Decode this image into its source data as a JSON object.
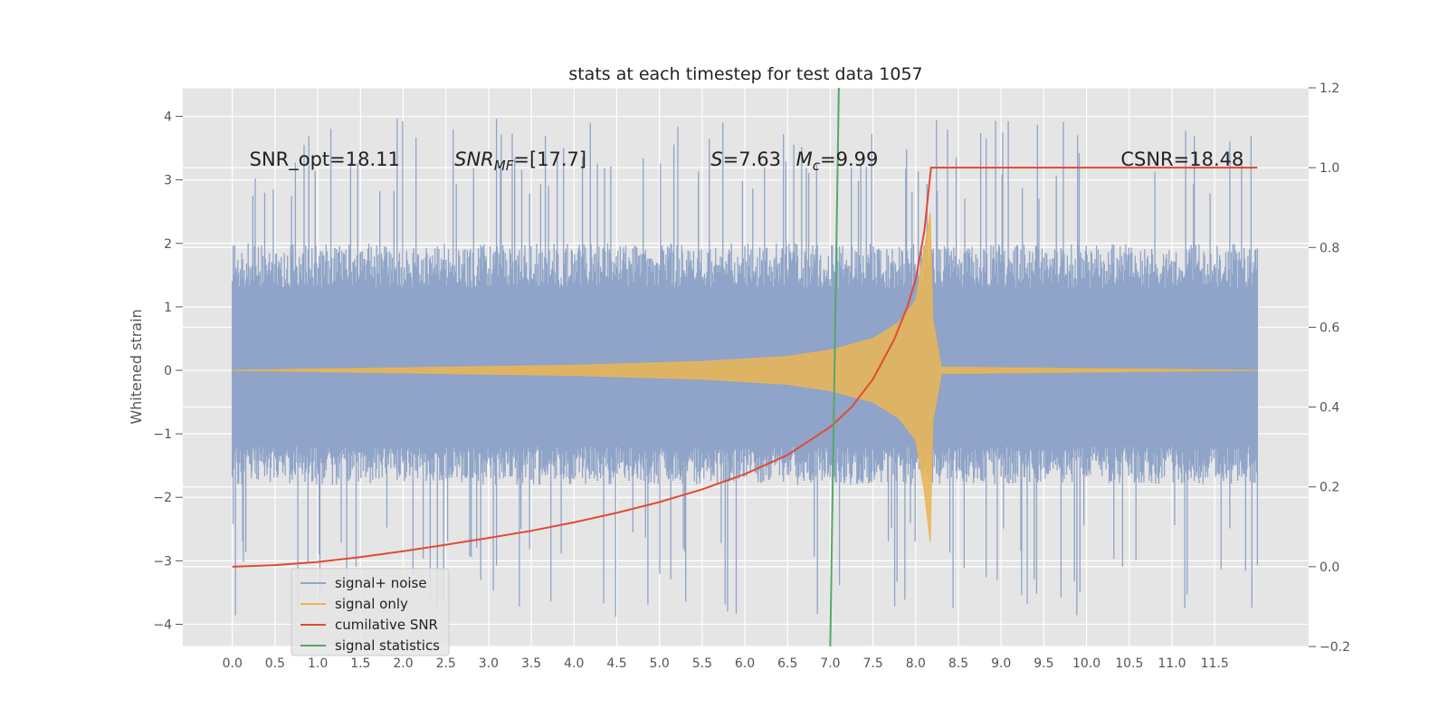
{
  "chart_data": {
    "type": "line",
    "title": "stats at each timestep for test data 1057",
    "xlabel": "",
    "ylabel": "Whitened strain",
    "y2label": "",
    "xlim": [
      -0.58,
      12.6
    ],
    "ylim": [
      -4.35,
      4.45
    ],
    "y2lim": [
      -0.2,
      1.2
    ],
    "grid": true,
    "xticks": [
      0.0,
      0.5,
      1.0,
      1.5,
      2.0,
      2.5,
      3.0,
      3.5,
      4.0,
      4.5,
      5.0,
      5.5,
      6.0,
      6.5,
      7.0,
      7.5,
      8.0,
      8.5,
      9.0,
      9.5,
      10.0,
      10.5,
      11.0,
      11.5
    ],
    "xtick_labels": [
      "0.0",
      "0.5",
      "1.0",
      "1.5",
      "2.0",
      "2.5",
      "3.0",
      "3.5",
      "4.0",
      "4.5",
      "5.0",
      "5.5",
      "6.0",
      "6.5",
      "7.0",
      "7.5",
      "8.0",
      "8.5",
      "9.0",
      "9.5",
      "10.0",
      "10.5",
      "11.0",
      "11.5"
    ],
    "yticks": [
      -4,
      -3,
      -2,
      -1,
      0,
      1,
      2,
      3,
      4
    ],
    "ytick_labels": [
      "−4",
      "−3",
      "−2",
      "−1",
      "0",
      "1",
      "2",
      "3",
      "4"
    ],
    "y2ticks": [
      -0.2,
      0.0,
      0.2,
      0.4,
      0.6,
      0.8,
      1.0,
      1.2
    ],
    "y2tick_labels": [
      "−0.2",
      "0.0",
      "0.2",
      "0.4",
      "0.6",
      "0.8",
      "1.0",
      "1.2"
    ],
    "annotations": [
      {
        "name": "snr-opt",
        "text": "SNR_opt=18.11",
        "x": 0.2,
        "y": 3.22
      },
      {
        "name": "snr-mf",
        "text": "SNR",
        "sub": "MF",
        "suffix": "=[17.7]",
        "x": 2.6,
        "y": 3.22
      },
      {
        "name": "s-value",
        "text": "S",
        "suffix": "=7.63",
        "x": 5.6,
        "y": 3.22
      },
      {
        "name": "mc-value",
        "text": "M",
        "sub": "c",
        "suffix": "=9.99",
        "x": 6.6,
        "y": 3.22
      },
      {
        "name": "csnr",
        "text": "CSNR=18.48",
        "x": 10.4,
        "y": 3.22
      }
    ],
    "series": [
      {
        "name": "signal+ noise",
        "axis": "left",
        "color": "#8fa4c8",
        "style": "noise band",
        "x_range": [
          0.0,
          12.0
        ],
        "body_range": [
          -1.7,
          1.95
        ],
        "peak_range": [
          -3.9,
          4.1
        ]
      },
      {
        "name": "signal only",
        "axis": "left",
        "color": "#e8b556",
        "style": "chirp envelope",
        "envelope": {
          "t": [
            0.0,
            2.0,
            4.0,
            5.5,
            6.5,
            7.0,
            7.5,
            7.8,
            8.0,
            8.1,
            8.17,
            8.2,
            8.3,
            12.0
          ],
          "amp": [
            0.0,
            0.04,
            0.08,
            0.14,
            0.22,
            0.32,
            0.5,
            0.75,
            1.1,
            1.9,
            2.7,
            0.8,
            0.05,
            0.0
          ]
        }
      },
      {
        "name": "cumilative SNR",
        "axis": "right",
        "color": "#e24a33",
        "x": [
          0.0,
          0.5,
          1.0,
          1.5,
          2.0,
          2.5,
          3.0,
          3.5,
          4.0,
          4.5,
          5.0,
          5.5,
          6.0,
          6.5,
          7.0,
          7.25,
          7.5,
          7.75,
          7.9,
          8.0,
          8.1,
          8.18,
          12.0
        ],
        "y": [
          0.0,
          0.004,
          0.012,
          0.024,
          0.039,
          0.055,
          0.072,
          0.09,
          0.111,
          0.135,
          0.162,
          0.194,
          0.232,
          0.28,
          0.35,
          0.4,
          0.47,
          0.57,
          0.65,
          0.72,
          0.84,
          1.0,
          1.0
        ]
      },
      {
        "name": "signal statistics",
        "axis": "right",
        "color": "#55a868",
        "x": [
          7.0,
          7.1
        ],
        "y": [
          -0.2,
          1.2
        ]
      }
    ],
    "legend": {
      "placement": "lower-left",
      "entries": [
        "signal+ noise",
        "signal only",
        "cumilative SNR",
        "signal statistics"
      ]
    }
  }
}
